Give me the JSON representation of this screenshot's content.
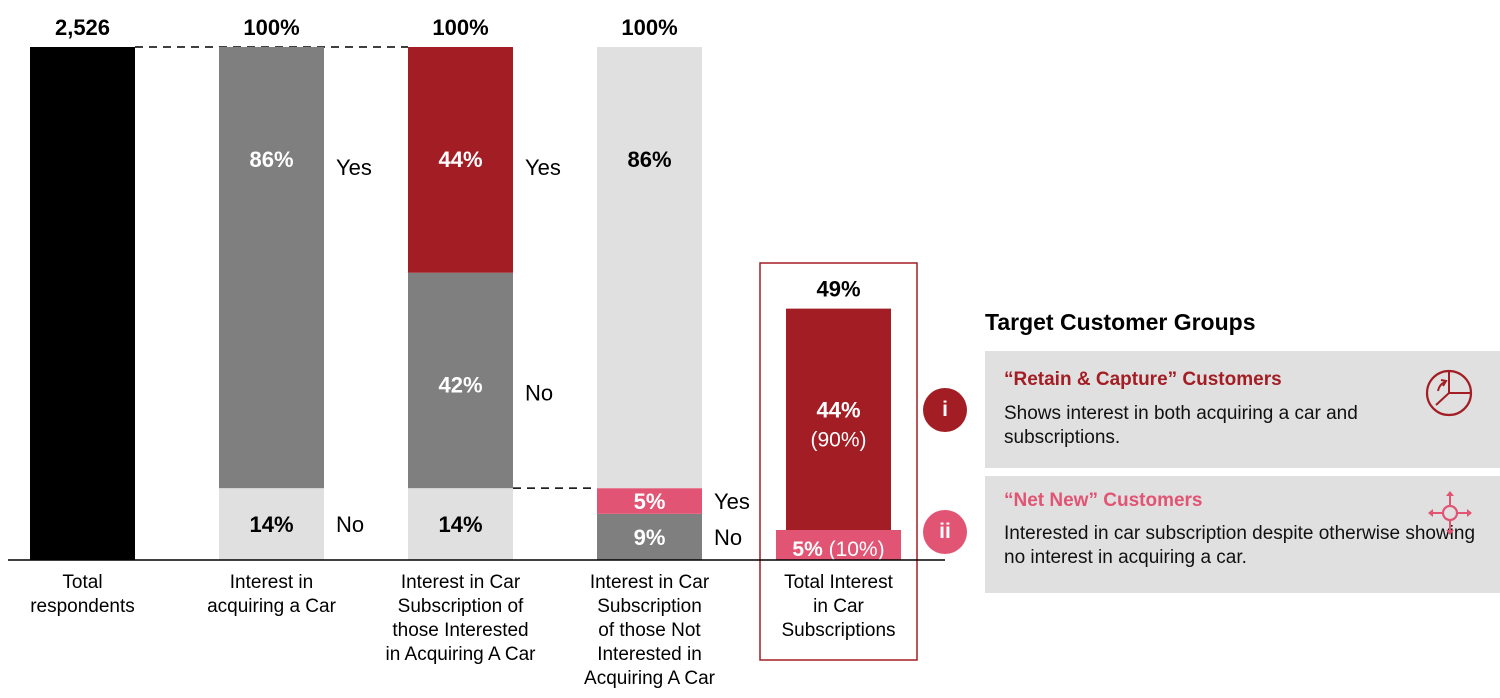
{
  "chart_data": {
    "type": "bar",
    "subtype": "stacked-waterfall",
    "title": "",
    "ylim": [
      0,
      100
    ],
    "grid": false,
    "categories": [
      "Total\nrespondents",
      "Interest in\nacquiring a Car",
      "Interest in Car\nSubscription of\nthose Interested\nin Acquiring A Car",
      "Interest in Car\nSubscription\nof those Not\nInterested in\nAcquiring A Car",
      "Total Interest\nin Car\nSubscriptions"
    ],
    "bars": [
      {
        "top_label": "2,526",
        "segments": [
          {
            "from": 0,
            "to": 100,
            "color": "#000000",
            "label": "",
            "side_label": ""
          }
        ]
      },
      {
        "top_label": "100%",
        "segments": [
          {
            "from": 0,
            "to": 14,
            "color": "#e0e0e0",
            "label": "14%",
            "side_label": "No"
          },
          {
            "from": 14,
            "to": 100,
            "color": "#7f7f7f",
            "label": "86%",
            "side_label": "Yes"
          }
        ]
      },
      {
        "top_label": "100%",
        "segments": [
          {
            "from": 0,
            "to": 14,
            "color": "#e0e0e0",
            "label": "14%",
            "side_label": ""
          },
          {
            "from": 14,
            "to": 56,
            "color": "#7f7f7f",
            "label": "42%",
            "side_label": "No"
          },
          {
            "from": 56,
            "to": 100,
            "color": "#a31d24",
            "label": "44%",
            "side_label": "Yes"
          }
        ]
      },
      {
        "top_label": "100%",
        "segments": [
          {
            "from": 0,
            "to": 9,
            "color": "#7f7f7f",
            "label": "9%",
            "side_label": "No"
          },
          {
            "from": 9,
            "to": 14,
            "color": "#e25473",
            "label": "5%",
            "side_label": "Yes"
          },
          {
            "from": 14,
            "to": 100,
            "color": "#e0e0e0",
            "label": "86%",
            "side_label": ""
          }
        ]
      },
      {
        "top_label": "49%",
        "segments": [
          {
            "from": 0,
            "to": 5,
            "color": "#e25473",
            "label": "5%",
            "label_extra": "(10%)",
            "side_label": ""
          },
          {
            "from": 5,
            "to": 49,
            "color": "#a31d24",
            "label": "44%",
            "label_extra": "(90%)",
            "side_label": ""
          }
        ]
      }
    ],
    "connectors": [
      {
        "from_bar": 0,
        "to_bar": 2,
        "value": 100
      },
      {
        "from_bar": 2,
        "to_bar": 3,
        "value": 14
      }
    ],
    "highlight_bar": 4
  },
  "panel": {
    "title": "Target Customer Groups",
    "groups": [
      {
        "badge": "i",
        "title": "“Retain & Capture” Customers",
        "desc": "Shows interest in both acquiring a car and subscriptions.",
        "icon": "pie-clock-icon",
        "color": "#a31d24"
      },
      {
        "badge": "ii",
        "title": "“Net New” Customers",
        "desc": "Interested in car subscription despite otherwise showing no interest in acquiring a car.",
        "icon": "move-arrows-icon",
        "color": "#e25473"
      }
    ]
  }
}
